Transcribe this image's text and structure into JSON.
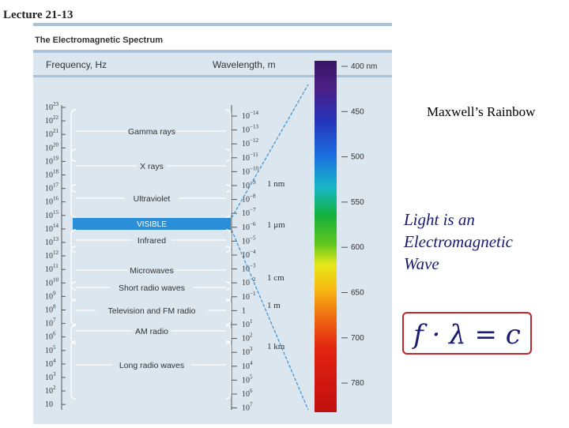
{
  "slide": {
    "lecture_label": "Lecture 21-13",
    "side_title": "Maxwell’s Rainbow",
    "slogan_lines": [
      "Light is an",
      "Electromagnetic",
      "Wave"
    ],
    "formula": "f · λ = c"
  },
  "figure": {
    "title": "The Electromagnetic Spectrum",
    "freq_header": "Frequency, Hz",
    "wave_header": "Wavelength, m",
    "freq_ticks": [
      {
        "base": "10",
        "exp": "23"
      },
      {
        "base": "10",
        "exp": "22"
      },
      {
        "base": "10",
        "exp": "21"
      },
      {
        "base": "10",
        "exp": "20"
      },
      {
        "base": "10",
        "exp": "19"
      },
      {
        "base": "10",
        "exp": "18"
      },
      {
        "base": "10",
        "exp": "17"
      },
      {
        "base": "10",
        "exp": "16"
      },
      {
        "base": "10",
        "exp": "15"
      },
      {
        "base": "10",
        "exp": "14"
      },
      {
        "base": "10",
        "exp": "13"
      },
      {
        "base": "10",
        "exp": "12"
      },
      {
        "base": "10",
        "exp": "11"
      },
      {
        "base": "10",
        "exp": "10"
      },
      {
        "base": "10",
        "exp": "9"
      },
      {
        "base": "10",
        "exp": "8"
      },
      {
        "base": "10",
        "exp": "7"
      },
      {
        "base": "10",
        "exp": "6"
      },
      {
        "base": "10",
        "exp": "5"
      },
      {
        "base": "10",
        "exp": "4"
      },
      {
        "base": "10",
        "exp": "3"
      },
      {
        "base": "10",
        "exp": "2"
      },
      {
        "base": "10",
        "exp": ""
      }
    ],
    "wave_ticks": [
      {
        "base": "10",
        "exp": "−14"
      },
      {
        "base": "10",
        "exp": "−13"
      },
      {
        "base": "10",
        "exp": "−12"
      },
      {
        "base": "10",
        "exp": "−11"
      },
      {
        "base": "10",
        "exp": "−10"
      },
      {
        "base": "10",
        "exp": "−9"
      },
      {
        "base": "10",
        "exp": "−8"
      },
      {
        "base": "10",
        "exp": "−7"
      },
      {
        "base": "10",
        "exp": "−6"
      },
      {
        "base": "10",
        "exp": "−5"
      },
      {
        "base": "10",
        "exp": "−4"
      },
      {
        "base": "10",
        "exp": "−3"
      },
      {
        "base": "10",
        "exp": "−2"
      },
      {
        "base": "10",
        "exp": "−1"
      },
      {
        "base": "1",
        "exp": ""
      },
      {
        "base": "10",
        "exp": "1"
      },
      {
        "base": "10",
        "exp": "2"
      },
      {
        "base": "10",
        "exp": "3"
      },
      {
        "base": "10",
        "exp": "4"
      },
      {
        "base": "10",
        "exp": "5"
      },
      {
        "base": "10",
        "exp": "6"
      },
      {
        "base": "10",
        "exp": "7"
      }
    ],
    "length_marks": [
      "1 nm",
      "1 μm",
      "1 cm",
      "1 m",
      "1 km"
    ],
    "bands": [
      "Gamma rays",
      "X rays",
      "Ultraviolet",
      "VISIBLE",
      "Infrared",
      "Microwaves",
      "Short radio waves",
      "Television and FM radio",
      "AM radio",
      "Long radio waves"
    ],
    "nm_labels": [
      "400 nm",
      "450",
      "500",
      "550",
      "600",
      "650",
      "700",
      "780"
    ],
    "colors": {
      "figure_bg": "#dbe6ef",
      "header_bar": "#a9c4da",
      "visible_band": "#2a8fd8",
      "diagonal_line": "#3a8fd0",
      "formula_border": "#c0272d",
      "slogan_text": "#1a1a6e"
    }
  }
}
